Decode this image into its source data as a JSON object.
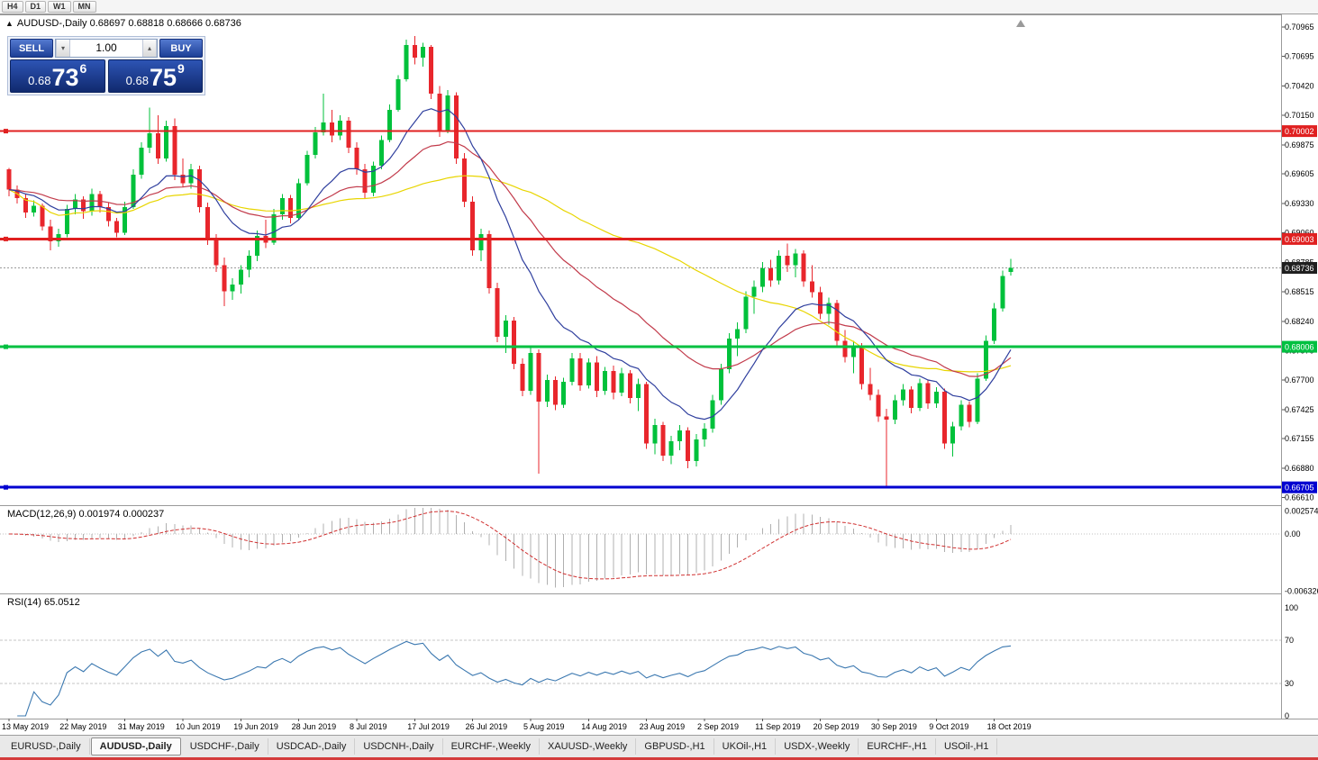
{
  "toolbar": {
    "periods": [
      "H4",
      "D1",
      "W1",
      "MN"
    ]
  },
  "chart": {
    "legend": "AUDUSD-,Daily 0.68697 0.68818 0.68666 0.68736"
  },
  "one_click": {
    "sell_label": "SELL",
    "buy_label": "BUY",
    "volume": "1.00",
    "sell_price": {
      "prefix": "0.68",
      "big": "73",
      "pip": "6"
    },
    "buy_price": {
      "prefix": "0.68",
      "big": "75",
      "pip": "9"
    }
  },
  "chart_data": {
    "type": "candlestick",
    "symbol": "AUDUSD-",
    "timeframe": "Daily",
    "title": "AUDUSD-,Daily",
    "ohlc_current": {
      "open": 0.68697,
      "high": 0.68818,
      "low": 0.68666,
      "close": 0.68736
    },
    "y_ticks": [
      "0.70965",
      "0.70695",
      "0.70420",
      "0.70150",
      "0.69875",
      "0.69605",
      "0.69330",
      "0.69060",
      "0.68785",
      "0.68515",
      "0.68240",
      "0.67970",
      "0.67700",
      "0.67425",
      "0.67155",
      "0.66880",
      "0.66610"
    ],
    "x_labels": [
      "13 May 2019",
      "22 May 2019",
      "31 May 2019",
      "10 Jun 2019",
      "19 Jun 2019",
      "28 Jun 2019",
      "8 Jul 2019",
      "17 Jul 2019",
      "26 Jul 2019",
      "5 Aug 2019",
      "14 Aug 2019",
      "23 Aug 2019",
      "2 Sep 2019",
      "11 Sep 2019",
      "20 Sep 2019",
      "30 Sep 2019",
      "9 Oct 2019",
      "18 Oct 2019"
    ],
    "label_every": 7,
    "candles": [
      [
        0.6965,
        0.6966,
        0.694,
        0.6946
      ],
      [
        0.6946,
        0.695,
        0.6933,
        0.6938
      ],
      [
        0.6938,
        0.6942,
        0.692,
        0.6925
      ],
      [
        0.6925,
        0.6936,
        0.6921,
        0.6931
      ],
      [
        0.6931,
        0.6933,
        0.6908,
        0.6912
      ],
      [
        0.6912,
        0.6918,
        0.689,
        0.6898
      ],
      [
        0.6898,
        0.691,
        0.6893,
        0.6905
      ],
      [
        0.6905,
        0.6932,
        0.6902,
        0.6928
      ],
      [
        0.6928,
        0.6942,
        0.6923,
        0.6937
      ],
      [
        0.6937,
        0.694,
        0.6919,
        0.6926
      ],
      [
        0.6926,
        0.6947,
        0.6922,
        0.6942
      ],
      [
        0.6942,
        0.6945,
        0.6925,
        0.693
      ],
      [
        0.693,
        0.6934,
        0.6912,
        0.6917
      ],
      [
        0.6917,
        0.692,
        0.6902,
        0.6906
      ],
      [
        0.6906,
        0.6935,
        0.6904,
        0.693
      ],
      [
        0.693,
        0.6965,
        0.6928,
        0.696
      ],
      [
        0.696,
        0.699,
        0.6956,
        0.6985
      ],
      [
        0.6985,
        0.7022,
        0.698,
        0.6998
      ],
      [
        0.6998,
        0.7015,
        0.697,
        0.6975
      ],
      [
        0.6975,
        0.701,
        0.6972,
        0.7005
      ],
      [
        0.7005,
        0.7012,
        0.6955,
        0.696
      ],
      [
        0.696,
        0.6975,
        0.6948,
        0.6952
      ],
      [
        0.6952,
        0.697,
        0.6947,
        0.6965
      ],
      [
        0.6965,
        0.6968,
        0.6925,
        0.693
      ],
      [
        0.693,
        0.6934,
        0.6895,
        0.69
      ],
      [
        0.69,
        0.6905,
        0.687,
        0.6876
      ],
      [
        0.6876,
        0.6883,
        0.6838,
        0.6852
      ],
      [
        0.6852,
        0.6864,
        0.6844,
        0.6858
      ],
      [
        0.6858,
        0.6876,
        0.685,
        0.6872
      ],
      [
        0.6872,
        0.689,
        0.6865,
        0.6885
      ],
      [
        0.6885,
        0.6908,
        0.688,
        0.6903
      ],
      [
        0.6903,
        0.6918,
        0.6892,
        0.6897
      ],
      [
        0.6897,
        0.6928,
        0.6895,
        0.6923
      ],
      [
        0.6923,
        0.6942,
        0.6918,
        0.6938
      ],
      [
        0.6938,
        0.6941,
        0.6915,
        0.692
      ],
      [
        0.692,
        0.6956,
        0.6918,
        0.6952
      ],
      [
        0.6952,
        0.6982,
        0.695,
        0.6978
      ],
      [
        0.6978,
        0.7004,
        0.6975,
        0.6999
      ],
      [
        0.6999,
        0.7035,
        0.6996,
        0.7008
      ],
      [
        0.7008,
        0.702,
        0.699,
        0.6996
      ],
      [
        0.6996,
        0.7015,
        0.6992,
        0.701
      ],
      [
        0.701,
        0.7013,
        0.698,
        0.6985
      ],
      [
        0.6985,
        0.699,
        0.696,
        0.6965
      ],
      [
        0.6965,
        0.697,
        0.6938,
        0.6943
      ],
      [
        0.6943,
        0.6972,
        0.694,
        0.6968
      ],
      [
        0.6968,
        0.6996,
        0.6965,
        0.6992
      ],
      [
        0.6992,
        0.7025,
        0.699,
        0.702
      ],
      [
        0.702,
        0.7052,
        0.7018,
        0.7048
      ],
      [
        0.7048,
        0.7085,
        0.7046,
        0.708
      ],
      [
        0.708,
        0.7088,
        0.7062,
        0.7068
      ],
      [
        0.7068,
        0.7082,
        0.706,
        0.7078
      ],
      [
        0.7078,
        0.708,
        0.703,
        0.7035
      ],
      [
        0.7035,
        0.7042,
        0.6995,
        0.7
      ],
      [
        0.7,
        0.7038,
        0.6998,
        0.7033
      ],
      [
        0.7033,
        0.7036,
        0.697,
        0.6975
      ],
      [
        0.6975,
        0.698,
        0.693,
        0.6935
      ],
      [
        0.6935,
        0.694,
        0.6885,
        0.689
      ],
      [
        0.689,
        0.691,
        0.688,
        0.6905
      ],
      [
        0.6905,
        0.6908,
        0.685,
        0.6855
      ],
      [
        0.6855,
        0.686,
        0.6805,
        0.681
      ],
      [
        0.681,
        0.683,
        0.6795,
        0.6825
      ],
      [
        0.6825,
        0.6828,
        0.678,
        0.6785
      ],
      [
        0.6785,
        0.679,
        0.6755,
        0.676
      ],
      [
        0.676,
        0.68,
        0.6756,
        0.6795
      ],
      [
        0.6795,
        0.6798,
        0.6683,
        0.675
      ],
      [
        0.675,
        0.6775,
        0.6745,
        0.677
      ],
      [
        0.677,
        0.6773,
        0.6742,
        0.6747
      ],
      [
        0.6747,
        0.6772,
        0.6744,
        0.6768
      ],
      [
        0.6768,
        0.6795,
        0.6765,
        0.679
      ],
      [
        0.679,
        0.6795,
        0.676,
        0.6765
      ],
      [
        0.6765,
        0.679,
        0.6762,
        0.6786
      ],
      [
        0.6786,
        0.6792,
        0.6754,
        0.676
      ],
      [
        0.676,
        0.6782,
        0.6756,
        0.6778
      ],
      [
        0.6778,
        0.6783,
        0.6752,
        0.6758
      ],
      [
        0.6758,
        0.6781,
        0.6755,
        0.6776
      ],
      [
        0.6776,
        0.6779,
        0.6748,
        0.6753
      ],
      [
        0.6753,
        0.6771,
        0.6741,
        0.6766
      ],
      [
        0.6766,
        0.6768,
        0.6706,
        0.6711
      ],
      [
        0.6711,
        0.6734,
        0.6701,
        0.6728
      ],
      [
        0.6728,
        0.6731,
        0.6695,
        0.67
      ],
      [
        0.67,
        0.6718,
        0.6692,
        0.6713
      ],
      [
        0.6713,
        0.6728,
        0.6705,
        0.6723
      ],
      [
        0.6723,
        0.6726,
        0.6688,
        0.6695
      ],
      [
        0.6695,
        0.672,
        0.669,
        0.6715
      ],
      [
        0.6715,
        0.673,
        0.6708,
        0.6725
      ],
      [
        0.6725,
        0.6756,
        0.6721,
        0.6751
      ],
      [
        0.6751,
        0.6785,
        0.6747,
        0.678
      ],
      [
        0.678,
        0.6813,
        0.6776,
        0.6808
      ],
      [
        0.6808,
        0.6823,
        0.6792,
        0.6817
      ],
      [
        0.6817,
        0.6852,
        0.6813,
        0.6847
      ],
      [
        0.6847,
        0.6862,
        0.6831,
        0.6856
      ],
      [
        0.6856,
        0.6879,
        0.6851,
        0.6873
      ],
      [
        0.6873,
        0.6881,
        0.6856,
        0.6862
      ],
      [
        0.6862,
        0.689,
        0.6858,
        0.6885
      ],
      [
        0.6885,
        0.6896,
        0.687,
        0.6876
      ],
      [
        0.6876,
        0.6891,
        0.6865,
        0.6887
      ],
      [
        0.6887,
        0.689,
        0.6856,
        0.6861
      ],
      [
        0.6861,
        0.6876,
        0.6846,
        0.6851
      ],
      [
        0.6851,
        0.6856,
        0.6826,
        0.6831
      ],
      [
        0.6831,
        0.6846,
        0.6821,
        0.6841
      ],
      [
        0.6841,
        0.6844,
        0.6801,
        0.6806
      ],
      [
        0.6806,
        0.6816,
        0.6786,
        0.6791
      ],
      [
        0.6791,
        0.6806,
        0.6776,
        0.6801
      ],
      [
        0.6801,
        0.6804,
        0.6761,
        0.6766
      ],
      [
        0.6766,
        0.6781,
        0.6751,
        0.6756
      ],
      [
        0.6756,
        0.6761,
        0.6731,
        0.6736
      ],
      [
        0.6736,
        0.6743,
        0.6671,
        0.6733
      ],
      [
        0.6733,
        0.6756,
        0.6729,
        0.6751
      ],
      [
        0.6751,
        0.6766,
        0.6746,
        0.6761
      ],
      [
        0.6761,
        0.6764,
        0.6739,
        0.6744
      ],
      [
        0.6744,
        0.6771,
        0.6741,
        0.6767
      ],
      [
        0.6767,
        0.677,
        0.6743,
        0.6748
      ],
      [
        0.6748,
        0.6763,
        0.6744,
        0.6759
      ],
      [
        0.6759,
        0.6762,
        0.6706,
        0.6711
      ],
      [
        0.6711,
        0.6731,
        0.6699,
        0.6727
      ],
      [
        0.6727,
        0.6751,
        0.6723,
        0.6747
      ],
      [
        0.6747,
        0.675,
        0.6726,
        0.6731
      ],
      [
        0.6731,
        0.6776,
        0.6729,
        0.6771
      ],
      [
        0.6771,
        0.6811,
        0.6769,
        0.6806
      ],
      [
        0.6806,
        0.6841,
        0.6803,
        0.6836
      ],
      [
        0.6836,
        0.6871,
        0.6833,
        0.6866
      ],
      [
        0.68697,
        0.68818,
        0.68666,
        0.68736
      ]
    ],
    "levels": [
      {
        "price": 0.70002,
        "label": "0.70002",
        "color": "#e02020",
        "width": 2
      },
      {
        "price": 0.69003,
        "label": "0.69003",
        "color": "#e02020",
        "width": 3
      },
      {
        "price": 0.68006,
        "label": "0.68006",
        "color": "#00c040",
        "width": 3
      },
      {
        "price": 0.66705,
        "label": "0.66705",
        "color": "#0000d0",
        "width": 3
      }
    ],
    "current_price": {
      "value": 0.68736,
      "label": "0.68736",
      "badge_color": "#1f1f1f"
    },
    "moving_averages": [
      {
        "type": "ema",
        "period": 13,
        "color": "#2f3f9e"
      },
      {
        "type": "ema",
        "period": 30,
        "color": "#c23b4b"
      },
      {
        "type": "sma",
        "period": 50,
        "color": "#e8d500"
      }
    ],
    "indicators": {
      "macd": {
        "legend": "MACD(12,26,9) 0.001974 0.000237",
        "fast": 12,
        "slow": 26,
        "signal": 9,
        "scale": [
          {
            "v": 0.002574,
            "label": "0.002574"
          },
          {
            "v": 0,
            "label": "0.00"
          },
          {
            "v": -0.006326,
            "label": "-0.006326"
          }
        ],
        "hist_color": "#b0b0b0",
        "signal_color": "#d03030"
      },
      "rsi": {
        "legend": "RSI(14) 65.0512",
        "period": 14,
        "value": 65.0512,
        "color": "#3b78b0",
        "scale": [
          {
            "v": 100,
            "label": "100"
          },
          {
            "v": 70,
            "label": "70"
          },
          {
            "v": 30,
            "label": "30"
          },
          {
            "v": 0,
            "label": "0"
          }
        ],
        "level_lines": [
          70,
          30
        ]
      }
    },
    "colors": {
      "up": "#00c13b",
      "down": "#e8262c"
    }
  },
  "tabs": {
    "items": [
      {
        "label": "EURUSD-,Daily",
        "active": false
      },
      {
        "label": "AUDUSD-,Daily",
        "active": true
      },
      {
        "label": "USDCHF-,Daily",
        "active": false
      },
      {
        "label": "USDCAD-,Daily",
        "active": false
      },
      {
        "label": "USDCNH-,Daily",
        "active": false
      },
      {
        "label": "EURCHF-,Weekly",
        "active": false
      },
      {
        "label": "XAUUSD-,Weekly",
        "active": false
      },
      {
        "label": "GBPUSD-,H1",
        "active": false
      },
      {
        "label": "UKOil-,H1",
        "active": false
      },
      {
        "label": "USDX-,Weekly",
        "active": false
      },
      {
        "label": "EURCHF-,H1",
        "active": false
      },
      {
        "label": "USOil-,H1",
        "active": false
      }
    ]
  }
}
